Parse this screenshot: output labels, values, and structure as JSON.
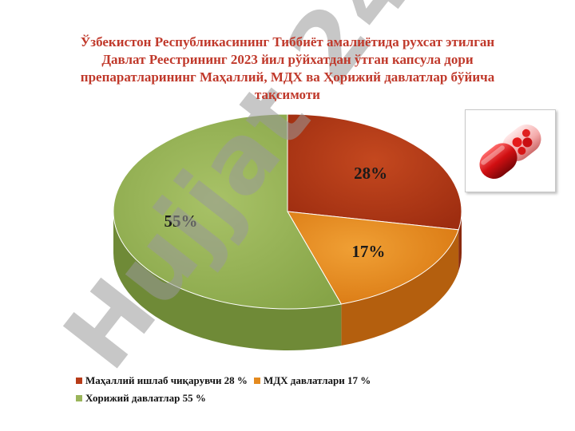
{
  "title_lines": [
    "Ўзбекистон Республикасининг Тиббиёт амалиётида рухсат этилган",
    "Давлат Реестрининг 2023 йил рўйхатдан ўтган капсула дори",
    "препаратларининг Маҳаллий, МДХ ва Ҳорижий давлатлар бўйича",
    "тақсимоти"
  ],
  "watermark": "Hujjat 24",
  "image": "red-capsule-photo",
  "colors": {
    "title": "#c0392b",
    "local": "#b73b18",
    "cis": "#e48a1f",
    "foreign": "#9ab55a",
    "watermark": "#8f87cf"
  },
  "chart_data": {
    "type": "pie",
    "style": "3d",
    "legend_position": "bottom",
    "slices": [
      {
        "label": "Маҳаллий ишлаб чиқарувчи",
        "value": 28,
        "data_label": "28%",
        "legend_label": "Маҳаллий ишлаб чиқарувчи 28 %"
      },
      {
        "label": "МДХ давлатлари",
        "value": 17,
        "data_label": "17%",
        "legend_label": "МДХ давлатлари 17 %"
      },
      {
        "label": "Хорижий давлатлар",
        "value": 55,
        "data_label": "55%",
        "legend_label": "Хорижий давлатлар 55 %"
      }
    ]
  }
}
